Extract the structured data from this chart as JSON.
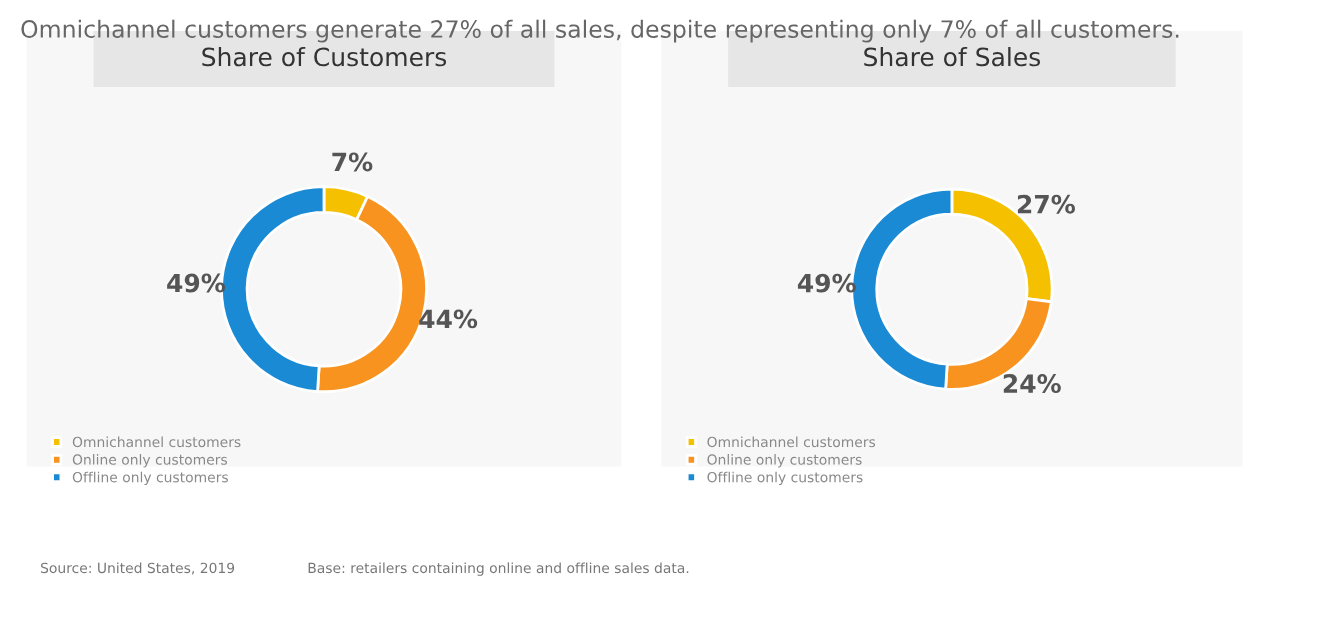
{
  "chart_data": [
    {
      "type": "donut",
      "title": "Share of Customers",
      "categories": [
        "Omnichannel customers",
        "Online only customers",
        "Offline only customers"
      ],
      "values": [
        7,
        44,
        49
      ],
      "value_labels": [
        "7%",
        "44%",
        "49%"
      ],
      "colors": [
        "#f5c000",
        "#f7931e",
        "#1a8ad4"
      ],
      "legend": "bottom left",
      "annotations": [
        "Omnichannel customers generate 27% of all sales, despite representing only 7% of all customers.",
        "Source: United States, 2019"
      ]
    },
    {
      "type": "donut",
      "title": "Share of Sales",
      "categories": [
        "Omnichannel customers",
        "Online only customers",
        "Offline only customers"
      ],
      "values": [
        27,
        24,
        49
      ],
      "value_labels": [
        "27%",
        "24%",
        "49%"
      ],
      "colors": [
        "#f5c000",
        "#f7931e",
        "#1a8ad4"
      ],
      "legend": "bottom left",
      "annotations": [
        "Base: retailers containing online and offline sales data."
      ]
    }
  ]
}
